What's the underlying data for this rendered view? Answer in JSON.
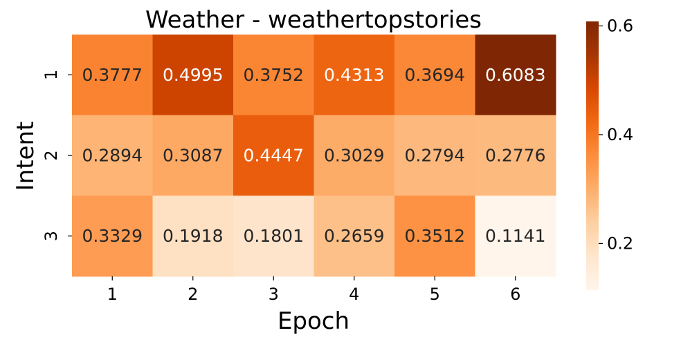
{
  "chart_data": {
    "type": "heatmap",
    "title": "Weather - weathertopstories",
    "xlabel": "Epoch",
    "ylabel": "Intent",
    "x_categories": [
      "1",
      "2",
      "3",
      "4",
      "5",
      "6"
    ],
    "y_categories": [
      "1",
      "2",
      "3"
    ],
    "values": [
      [
        0.3777,
        0.4995,
        0.3752,
        0.4313,
        0.3694,
        0.6083
      ],
      [
        0.2894,
        0.3087,
        0.4447,
        0.3029,
        0.2794,
        0.2776
      ],
      [
        0.3329,
        0.1918,
        0.1801,
        0.2659,
        0.3512,
        0.1141
      ]
    ],
    "value_labels": [
      [
        "0.3777",
        "0.4995",
        "0.3752",
        "0.4313",
        "0.3694",
        "0.6083"
      ],
      [
        "0.2894",
        "0.3087",
        "0.4447",
        "0.3029",
        "0.2794",
        "0.2776"
      ],
      [
        "0.3329",
        "0.1918",
        "0.1801",
        "0.2659",
        "0.3512",
        "0.1141"
      ]
    ],
    "colorbar": {
      "colormap": "Oranges",
      "range": [
        0.1141,
        0.6083
      ],
      "ticks": [
        0.2,
        0.4,
        0.6
      ],
      "tick_labels": [
        "0.2",
        "0.4",
        "0.6"
      ]
    },
    "colors": {
      "stops": [
        "#fff5eb",
        "#fee6ce",
        "#fdd0a2",
        "#fdae6b",
        "#fd8d3c",
        "#f16913",
        "#d94801",
        "#a63603",
        "#7f2704"
      ],
      "light_text": "#ffffff",
      "dark_text": "#262626"
    }
  }
}
